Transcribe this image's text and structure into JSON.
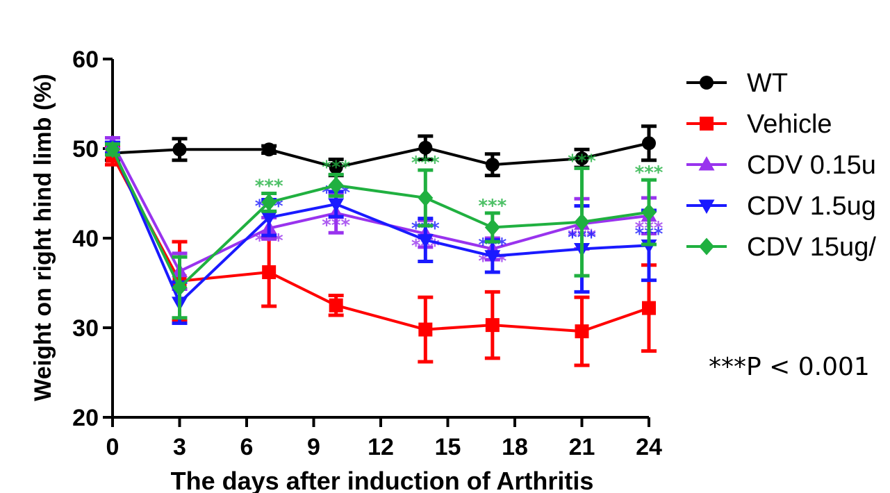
{
  "chart_data": {
    "type": "line",
    "xlabel": "The days after induction of Arthritis",
    "ylabel": "Weight on right hind limb (%)",
    "xlim": [
      0,
      24
    ],
    "ylim": [
      20,
      60
    ],
    "xticks": [
      "0",
      "3",
      "6",
      "9",
      "12",
      "15",
      "18",
      "21",
      "24"
    ],
    "yticks": [
      "20",
      "30",
      "40",
      "50",
      "60"
    ],
    "x": [
      0,
      3,
      7,
      10,
      14,
      17,
      21,
      24
    ],
    "grid": false,
    "legend_position": "right",
    "significance_marker": "***",
    "annotation": "***P < 0.001",
    "series": [
      {
        "name": "WT",
        "color": "#000000",
        "marker": "circle",
        "values": [
          49.5,
          49.9,
          49.9,
          47.9,
          50.1,
          48.2,
          48.9,
          50.6
        ],
        "errors": [
          0.8,
          1.2,
          0.4,
          0.9,
          1.3,
          1.2,
          1.0,
          1.9
        ],
        "significance": []
      },
      {
        "name": "Vehicle",
        "color": "#ff0000",
        "marker": "square",
        "values": [
          49.2,
          35.2,
          36.2,
          32.5,
          29.8,
          30.3,
          29.6,
          32.2
        ],
        "errors": [
          1.0,
          4.4,
          3.8,
          1.1,
          3.6,
          3.7,
          3.8,
          4.8
        ],
        "significance": []
      },
      {
        "name": "CDV 0.15u",
        "color": "#9933ee",
        "marker": "triangle-up",
        "values": [
          50.6,
          36.3,
          41.1,
          42.8,
          40.5,
          38.8,
          41.6,
          42.5
        ],
        "errors": [
          0.6,
          2.0,
          1.2,
          2.2,
          1.5,
          1.2,
          2.8,
          2.0
        ],
        "significance": [
          2,
          3,
          4,
          5,
          6,
          7
        ]
      },
      {
        "name": "CDV 1.5ug",
        "color": "#1a1aff",
        "marker": "triangle-down",
        "values": [
          50.1,
          32.8,
          42.3,
          43.8,
          39.8,
          38.0,
          38.8,
          39.2
        ],
        "errors": [
          0.6,
          2.3,
          2.0,
          1.4,
          2.4,
          1.8,
          4.8,
          3.9
        ],
        "significance": [
          2,
          3,
          4,
          5,
          6,
          7
        ]
      },
      {
        "name": "CDV 15ug/",
        "color": "#20b040",
        "marker": "diamond",
        "values": [
          49.9,
          34.5,
          44.0,
          45.9,
          44.5,
          41.2,
          41.8,
          42.9
        ],
        "errors": [
          0.6,
          3.4,
          1.0,
          1.2,
          3.1,
          1.6,
          6.0,
          3.6
        ],
        "significance": [
          2,
          3,
          4,
          5,
          6,
          7
        ]
      }
    ]
  }
}
